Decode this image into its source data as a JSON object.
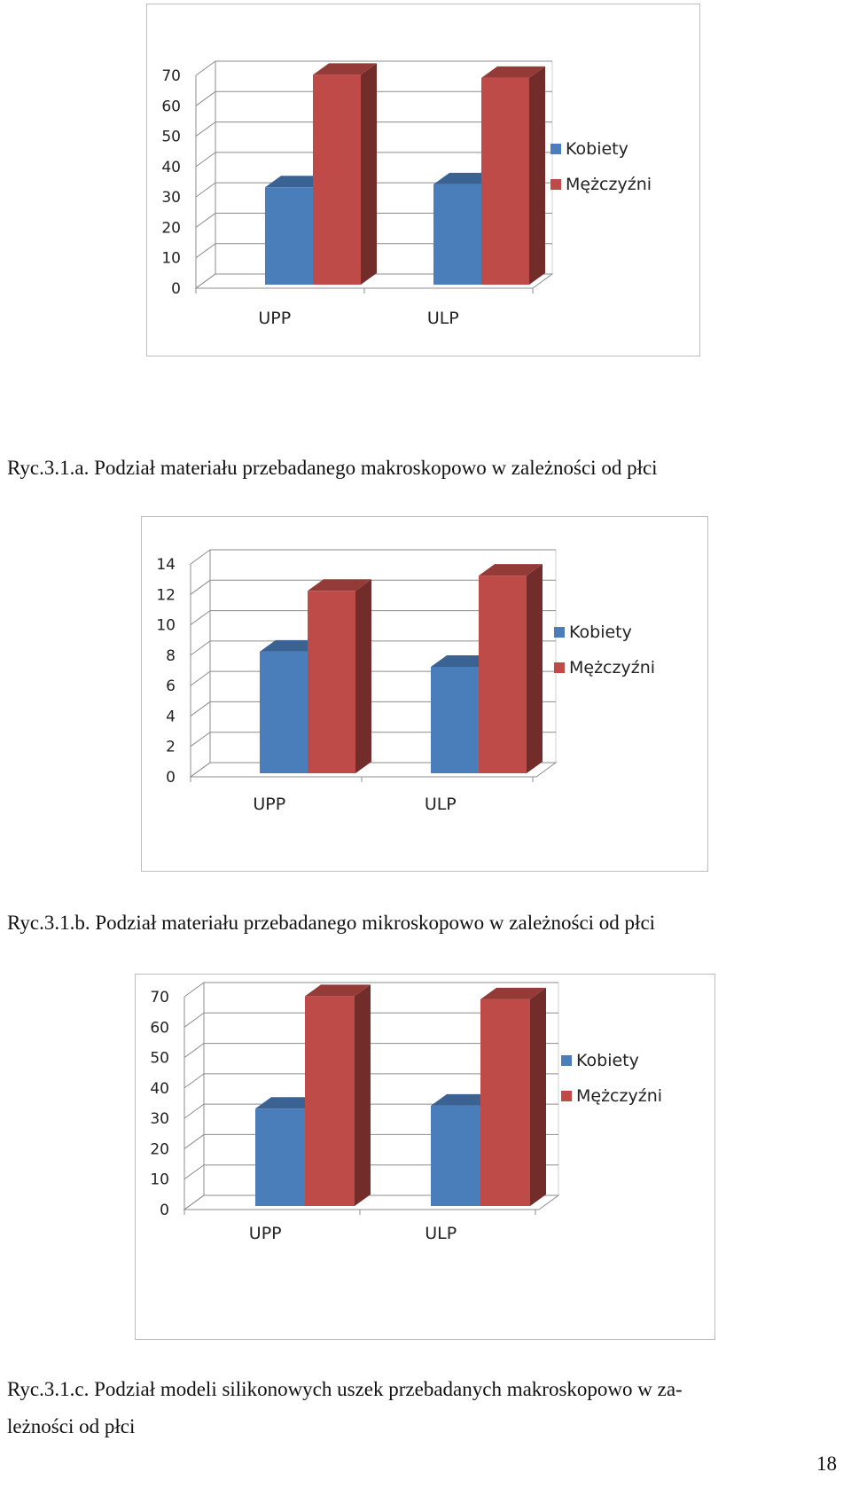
{
  "chart_data": [
    {
      "type": "bar",
      "categories": [
        "UPP",
        "ULP"
      ],
      "series": [
        {
          "name": "Kobiety",
          "values": [
            32,
            33
          ],
          "color": "#4A7EBB"
        },
        {
          "name": "Mężczyźni",
          "values": [
            69,
            68
          ],
          "color": "#BE4B48"
        }
      ],
      "yticks": [
        "0",
        "10",
        "20",
        "30",
        "40",
        "50",
        "60",
        "70"
      ],
      "ylim": [
        0,
        70
      ],
      "legend": "right",
      "grid": true,
      "style": "3d-column"
    },
    {
      "type": "bar",
      "categories": [
        "UPP",
        "ULP"
      ],
      "series": [
        {
          "name": "Kobiety",
          "values": [
            8,
            7
          ],
          "color": "#4A7EBB"
        },
        {
          "name": "Mężczyźni",
          "values": [
            12,
            13
          ],
          "color": "#BE4B48"
        }
      ],
      "yticks": [
        "0",
        "2",
        "4",
        "6",
        "8",
        "10",
        "12",
        "14"
      ],
      "ylim": [
        0,
        14
      ],
      "legend": "right",
      "grid": true,
      "style": "3d-column"
    },
    {
      "type": "bar",
      "categories": [
        "UPP",
        "ULP"
      ],
      "series": [
        {
          "name": "Kobiety",
          "values": [
            32,
            33
          ],
          "color": "#4A7EBB"
        },
        {
          "name": "Mężczyźni",
          "values": [
            69,
            68
          ],
          "color": "#BE4B48"
        }
      ],
      "yticks": [
        "0",
        "10",
        "20",
        "30",
        "40",
        "50",
        "60",
        "70"
      ],
      "ylim": [
        0,
        70
      ],
      "legend": "right",
      "grid": true,
      "style": "3d-column"
    }
  ],
  "captions": {
    "a": "Ryc.3.1.a. Podział materiału przebadanego makroskopowo w zależności od płci",
    "b": "Ryc.3.1.b. Podział materiału przebadanego mikroskopowo w zależności od płci",
    "c_line1": "Ryc.3.1.c. Podział modeli silikonowych uszek przebadanych makroskopowo w za-",
    "c_line2": "leżności od płci"
  },
  "page_number": "18"
}
